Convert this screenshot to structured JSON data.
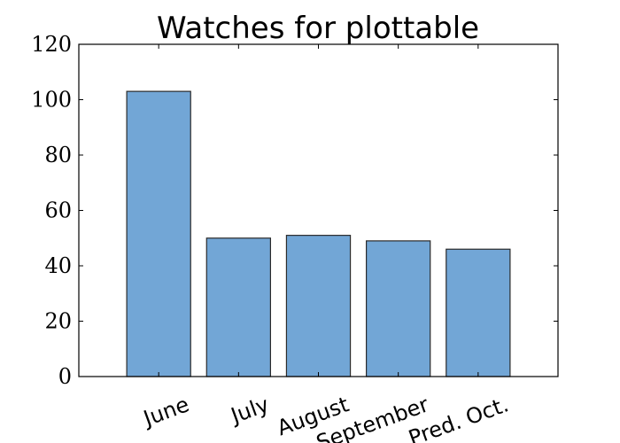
{
  "colors": {
    "bar_fill": "#72a6d6",
    "bar_edge": "#2b2b2b",
    "axis": "#000000",
    "background": "#ffffff"
  },
  "chart_data": {
    "type": "bar",
    "title": "Watches for plottable",
    "xlabel": "",
    "ylabel": "",
    "categories": [
      "June",
      "July",
      "August",
      "September",
      "Pred. Oct."
    ],
    "values": [
      103,
      50,
      51,
      49,
      46
    ],
    "ylim": [
      0,
      120
    ],
    "yticks": [
      "0",
      "20",
      "40",
      "60",
      "80",
      "100",
      "120"
    ],
    "grid": false,
    "legend": "none"
  }
}
